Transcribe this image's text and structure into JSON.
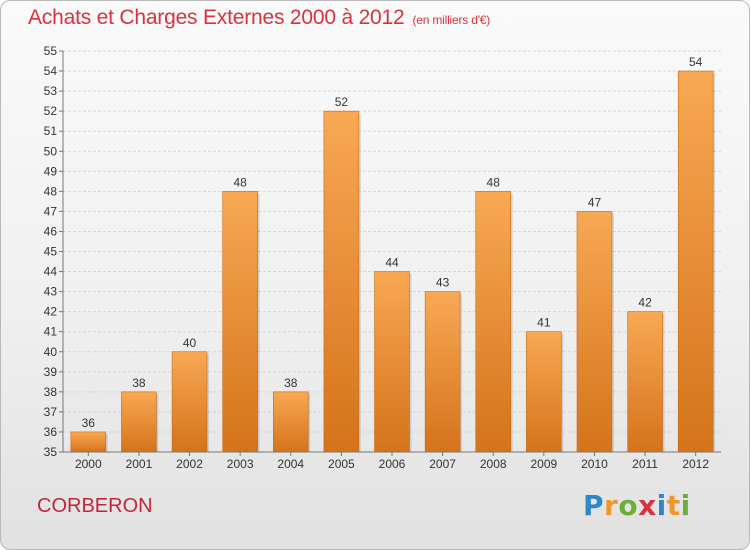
{
  "header": {
    "title": "Achats et Charges Externes 2000 à 2012",
    "unit": "(en milliers d'€)"
  },
  "footer": {
    "city": "CORBERON",
    "logo": {
      "p": "P",
      "r": "r",
      "o": "o",
      "x": "x",
      "i1": "i",
      "t": "t",
      "i2": "i"
    }
  },
  "colors": {
    "bar_light": "#f8a853",
    "bar_dark": "#d4731b",
    "title": "#d8333d",
    "city": "#c2263a"
  },
  "chart_data": {
    "type": "bar",
    "title": "Achats et Charges Externes 2000 à 2012",
    "subtitle": "(en milliers d'€)",
    "categories": [
      "2000",
      "2001",
      "2002",
      "2003",
      "2004",
      "2005",
      "2006",
      "2007",
      "2008",
      "2009",
      "2010",
      "2011",
      "2012"
    ],
    "values": [
      36,
      38,
      40,
      48,
      38,
      52,
      44,
      43,
      48,
      41,
      47,
      42,
      54
    ],
    "ylim": [
      35,
      55
    ],
    "yticks": [
      "35",
      "36",
      "37",
      "38",
      "39",
      "40",
      "41",
      "42",
      "43",
      "44",
      "45",
      "46",
      "47",
      "48",
      "49",
      "50",
      "51",
      "52",
      "53",
      "54",
      "55"
    ],
    "grid": true,
    "data_labels": [
      "36",
      "38",
      "40",
      "48",
      "38",
      "52",
      "44",
      "43",
      "48",
      "41",
      "47",
      "42",
      "54"
    ]
  }
}
